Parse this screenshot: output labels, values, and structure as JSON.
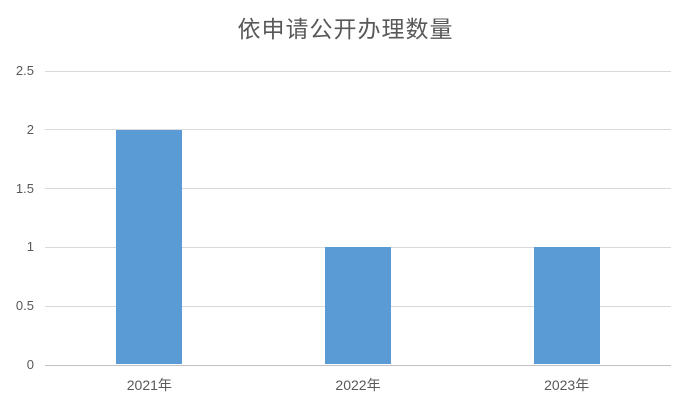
{
  "chart_data": {
    "type": "bar",
    "title": "依申请公开办理数量",
    "categories": [
      "2021年",
      "2022年",
      "2023年"
    ],
    "values": [
      2,
      1,
      1
    ],
    "xlabel": "",
    "ylabel": "",
    "ylim": [
      0,
      2.5
    ],
    "ytick_step": 0.5,
    "yticks": [
      0,
      0.5,
      1,
      1.5,
      2,
      2.5
    ],
    "ytick_labels": [
      "0",
      "0.5",
      "1",
      "1.5",
      "2",
      "2.5"
    ],
    "grid": true,
    "legend_position": "none",
    "colors": {
      "bar": "#5b9bd5",
      "gridline": "#d9d9d9",
      "axis_line": "#c0c0c0",
      "label": "#595959",
      "title": "#595959",
      "background": "#ffffff"
    }
  }
}
